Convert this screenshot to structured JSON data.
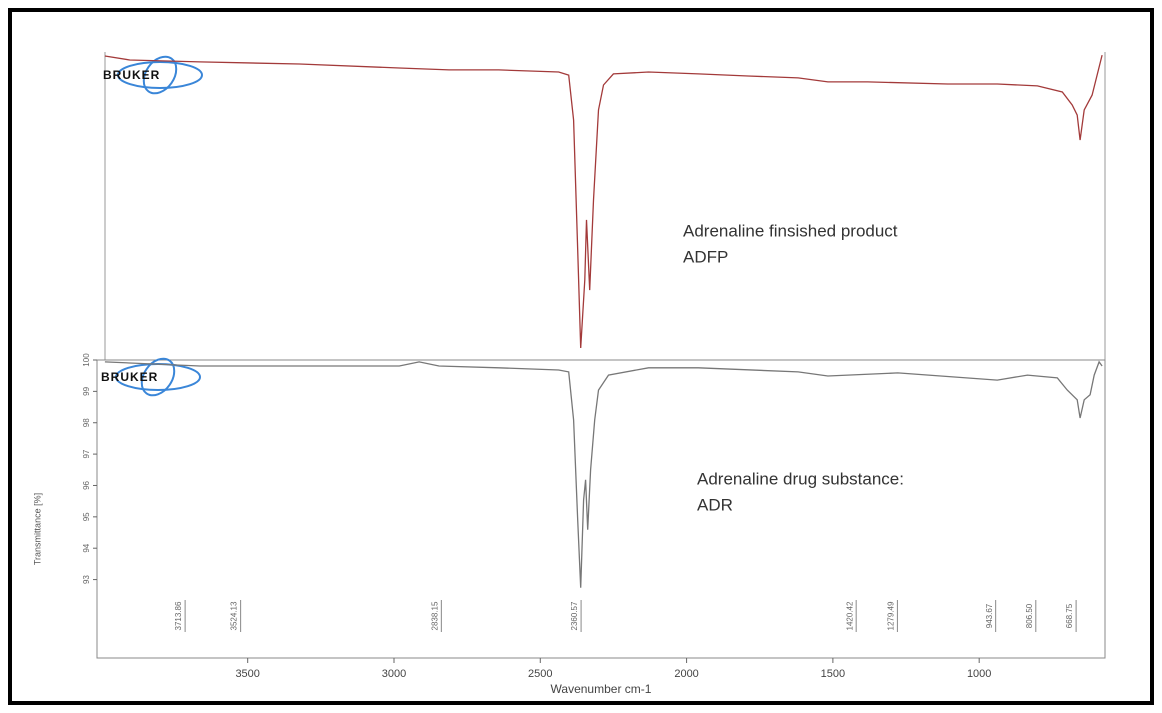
{
  "logo": "BRUKER",
  "chart_data": [
    {
      "type": "line",
      "color": "#a33a3a",
      "annotation": [
        "Adrenaline finsished product",
        "ADFP"
      ],
      "xlim": [
        4015,
        570
      ],
      "ylim": [
        0,
        100
      ],
      "x": [
        3988,
        3903,
        3664,
        3323,
        2982,
        2812,
        2642,
        2437,
        2403,
        2386,
        2372,
        2362,
        2348,
        2342,
        2331,
        2318,
        2301,
        2284,
        2250,
        2130,
        1960,
        1790,
        1619,
        1517,
        1381,
        1108,
        938,
        801,
        716,
        682,
        665,
        655,
        641,
        614,
        597,
        580
      ],
      "values": [
        98.7,
        97.4,
        96.8,
        96.1,
        94.8,
        94.2,
        94.2,
        93.5,
        92.5,
        77.9,
        35.7,
        3.9,
        26.0,
        45.5,
        22.7,
        51.9,
        81.2,
        89.3,
        92.9,
        93.5,
        92.9,
        92.2,
        91.6,
        90.3,
        90.3,
        89.6,
        89.6,
        89.0,
        87.0,
        82.8,
        79.5,
        71.4,
        81.2,
        86.0,
        92.5,
        99.0
      ]
    },
    {
      "type": "line",
      "color": "#777777",
      "annotation": [
        "Adrenaline drug substance:",
        "ADR"
      ],
      "xlabel": "Wavenumber cm-1",
      "ylabel": "Transmittance [%]",
      "xlim": [
        4015,
        570
      ],
      "ylim": [
        90.5,
        100
      ],
      "xticks": [
        3500,
        3000,
        2500,
        2000,
        1500,
        1000
      ],
      "yticks": [
        93,
        94,
        95,
        96,
        97,
        98,
        99,
        100
      ],
      "peaks": [
        3713.86,
        3524.13,
        2838.15,
        2360.57,
        1420.42,
        1279.49,
        943.67,
        {
          "value": 806.5,
          "label": "806.50"
        },
        668.75
      ],
      "x": [
        3988,
        3664,
        3323,
        2982,
        2914,
        2846,
        2642,
        2437,
        2403,
        2386,
        2372,
        2362,
        2352,
        2345,
        2338,
        2328,
        2314,
        2301,
        2267,
        2130,
        1960,
        1619,
        1517,
        1278,
        938,
        835,
        733,
        699,
        665,
        655,
        641,
        621,
        607,
        590,
        580
      ],
      "values": [
        99.94,
        99.81,
        99.81,
        99.81,
        99.94,
        99.81,
        99.75,
        99.68,
        99.62,
        98.09,
        94.9,
        92.74,
        95.54,
        96.18,
        94.59,
        96.5,
        98.09,
        99.04,
        99.52,
        99.75,
        99.75,
        99.62,
        99.49,
        99.59,
        99.36,
        99.52,
        99.43,
        99.04,
        98.73,
        98.15,
        98.73,
        98.89,
        99.52,
        99.94,
        99.81
      ]
    }
  ]
}
